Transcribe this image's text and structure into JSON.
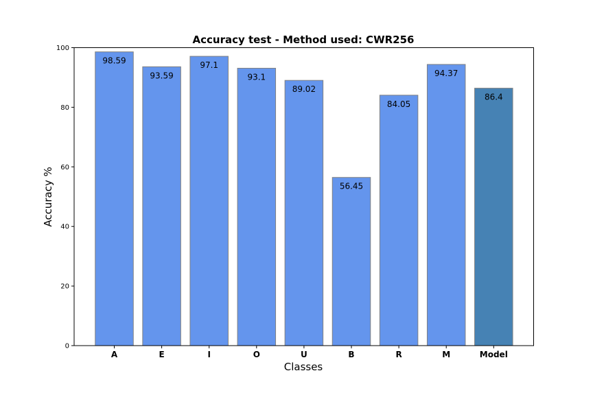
{
  "chart_data": {
    "type": "bar",
    "title": "Accuracy test - Method used: CWR256",
    "xlabel": "Classes",
    "ylabel": "Accuracy %",
    "categories": [
      "A",
      "E",
      "I",
      "O",
      "U",
      "B",
      "R",
      "M",
      "Model"
    ],
    "values": [
      98.59,
      93.59,
      97.1,
      93.1,
      89.02,
      56.45,
      84.05,
      94.37,
      86.4
    ],
    "data_labels": [
      "98.59",
      "93.59",
      "97.1",
      "93.1",
      "89.02",
      "56.45",
      "84.05",
      "94.37",
      "86.4"
    ],
    "bar_colors": [
      "#6495ed",
      "#6495ed",
      "#6495ed",
      "#6495ed",
      "#6495ed",
      "#6495ed",
      "#6495ed",
      "#6495ed",
      "#4682b4"
    ],
    "edge_color": "#808080",
    "ylim": [
      0,
      100
    ],
    "yticks": [
      0,
      20,
      40,
      60,
      80,
      100
    ],
    "ytick_labels": [
      "0",
      "20",
      "40",
      "60",
      "80",
      "100"
    ],
    "grid": false,
    "legend": false
  }
}
